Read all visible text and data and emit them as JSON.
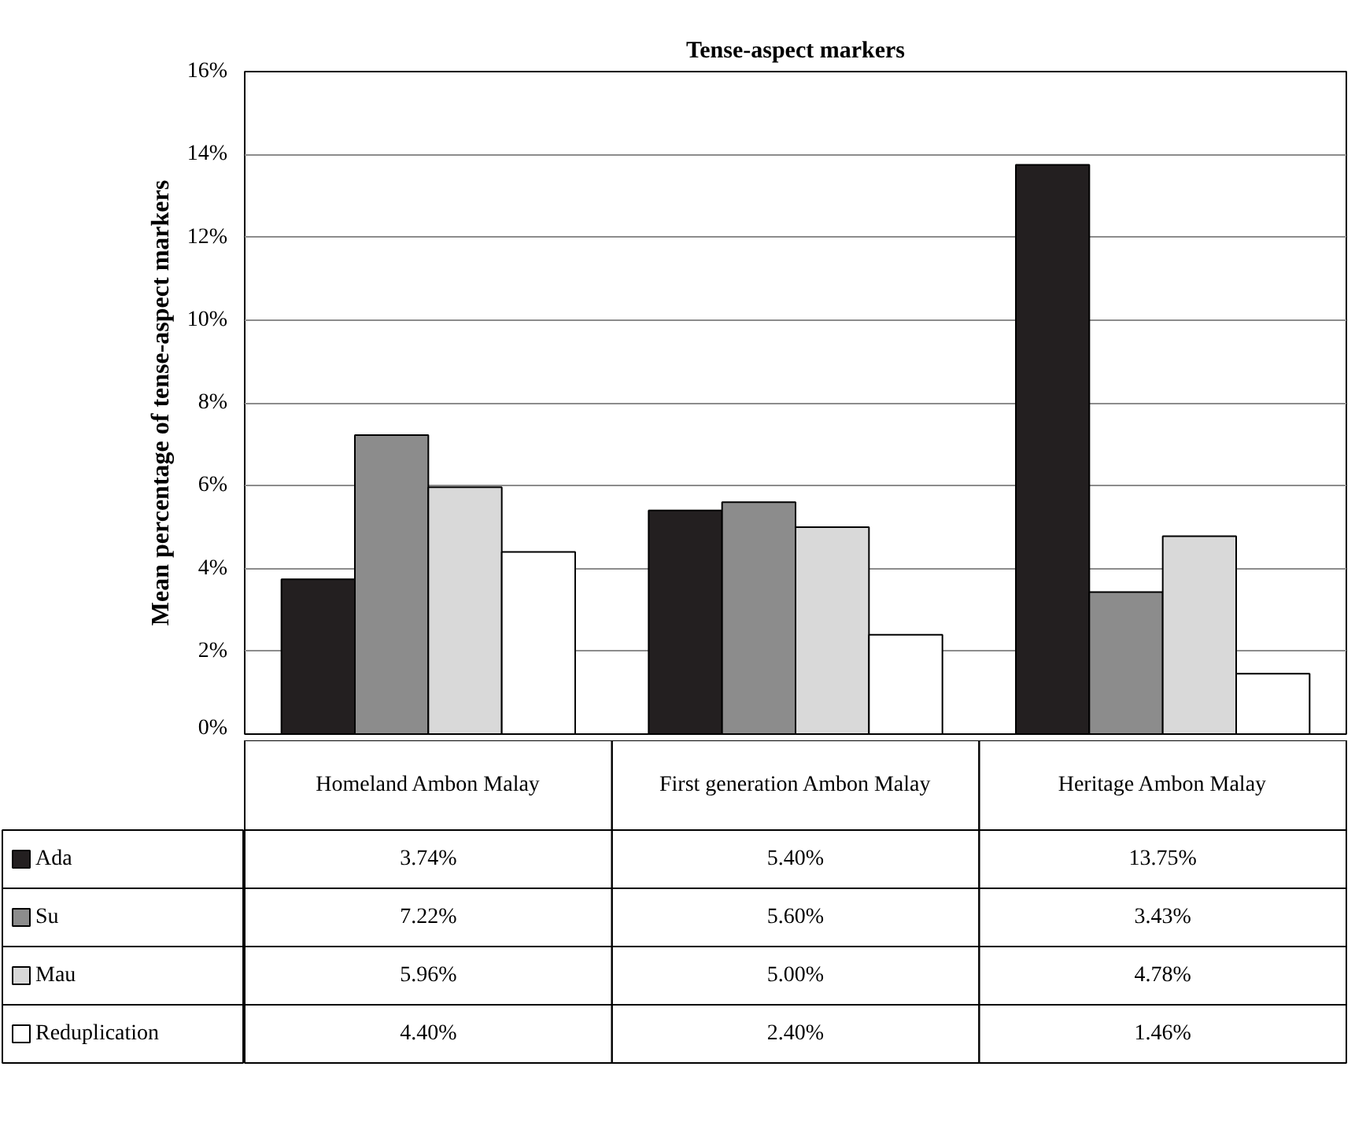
{
  "chart_data": {
    "type": "bar",
    "title": "Tense-aspect markers",
    "ylabel": "Mean percentage of tense-aspect markers",
    "categories": [
      "Homeland Ambon Malay",
      "First generation Ambon Malay",
      "Heritage Ambon Malay"
    ],
    "series": [
      {
        "name": "Ada",
        "color": "#231f20",
        "values": [
          3.74,
          5.4,
          13.75
        ],
        "value_labels": [
          "3.74%",
          "5.40%",
          "13.75%"
        ]
      },
      {
        "name": "Su",
        "color": "#8c8c8c",
        "values": [
          7.22,
          5.6,
          3.43
        ],
        "value_labels": [
          "7.22%",
          "5.60%",
          "3.43%"
        ]
      },
      {
        "name": "Mau",
        "color": "#d9d9d9",
        "values": [
          5.96,
          5.0,
          4.78
        ],
        "value_labels": [
          "5.96%",
          "5.00%",
          "4.78%"
        ]
      },
      {
        "name": "Reduplication",
        "color": "#ffffff",
        "values": [
          4.4,
          2.4,
          1.46
        ],
        "value_labels": [
          "4.40%",
          "2.40%",
          "1.46%"
        ]
      }
    ],
    "ylim": [
      0,
      16
    ],
    "yticks": [
      {
        "value": 0,
        "label": "0%"
      },
      {
        "value": 2,
        "label": "2%"
      },
      {
        "value": 4,
        "label": "4%"
      },
      {
        "value": 6,
        "label": "6%"
      },
      {
        "value": 8,
        "label": "8%"
      },
      {
        "value": 10,
        "label": "10%"
      },
      {
        "value": 12,
        "label": "12%"
      },
      {
        "value": 14,
        "label": "14%"
      },
      {
        "value": 16,
        "label": "16%"
      }
    ],
    "grid": "y",
    "legend": "bottom"
  }
}
